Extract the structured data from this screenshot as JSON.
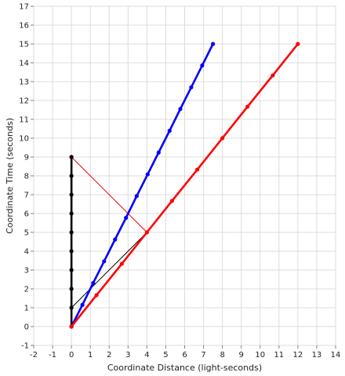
{
  "chart_data": {
    "type": "line",
    "title": "",
    "xlabel": "Coordinate Distance (light-seconds)",
    "ylabel": "Coordinate Time (seconds)",
    "xlim": [
      -2,
      14
    ],
    "ylim": [
      -1,
      17
    ],
    "xticks": [
      -2,
      -1,
      0,
      1,
      2,
      3,
      4,
      5,
      6,
      7,
      8,
      9,
      10,
      11,
      12,
      13,
      14
    ],
    "yticks": [
      -1,
      0,
      1,
      2,
      3,
      4,
      5,
      6,
      7,
      8,
      9,
      10,
      11,
      12,
      13,
      14,
      15,
      16,
      17
    ],
    "grid": true,
    "legend": "none",
    "series": [
      {
        "color": "#000000",
        "style": "thick",
        "x": [
          0,
          0,
          0,
          0,
          0,
          0,
          0,
          0,
          0,
          0
        ],
        "y": [
          0,
          1,
          2,
          3,
          4,
          5,
          6,
          7,
          8,
          9
        ]
      },
      {
        "color": "#0000ff",
        "style": "thick",
        "x": [
          0,
          0.58,
          1.15,
          1.73,
          2.31,
          2.89,
          3.46,
          4.04,
          4.62,
          5.2,
          5.77,
          6.35,
          6.93,
          7.5
        ],
        "y": [
          0,
          1.15,
          2.31,
          3.46,
          4.62,
          5.77,
          6.93,
          8.08,
          9.24,
          10.39,
          11.55,
          12.7,
          13.86,
          15
        ]
      },
      {
        "color": "#ff0000",
        "style": "thick",
        "x": [
          0,
          1.33,
          2.67,
          4,
          5.33,
          6.67,
          8,
          9.33,
          10.67,
          12
        ],
        "y": [
          0,
          1.67,
          3.33,
          5,
          6.67,
          8.33,
          10,
          11.67,
          13.33,
          15
        ]
      },
      {
        "color": "#ff0000",
        "style": "thin",
        "x": [
          0,
          4
        ],
        "y": [
          9,
          5
        ]
      },
      {
        "color": "#000000",
        "style": "thin",
        "x": [
          0,
          4
        ],
        "y": [
          1,
          5
        ]
      }
    ]
  }
}
